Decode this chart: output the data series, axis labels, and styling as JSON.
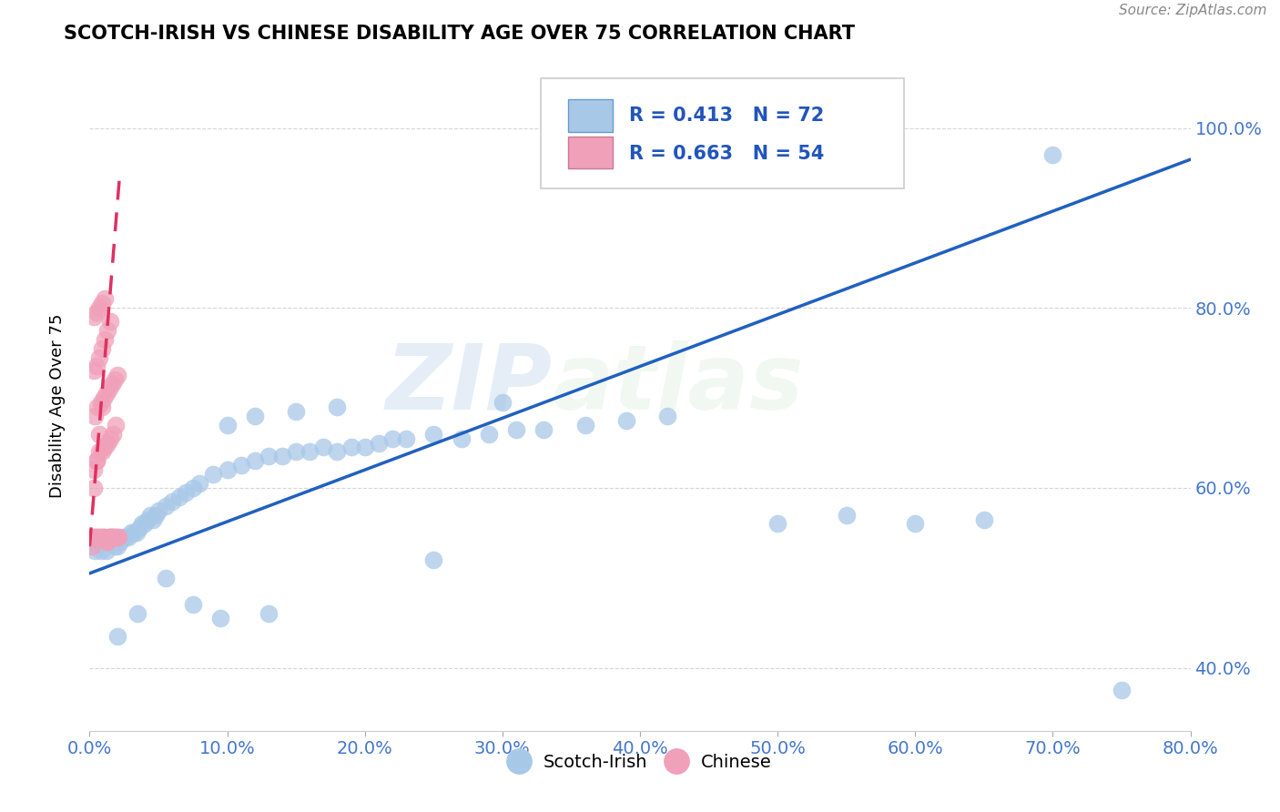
{
  "title": "SCOTCH-IRISH VS CHINESE DISABILITY AGE OVER 75 CORRELATION CHART",
  "source": "Source: ZipAtlas.com",
  "ylabel": "Disability Age Over 75",
  "legend_blue_label": "Scotch-Irish",
  "legend_pink_label": "Chinese",
  "R_blue": 0.413,
  "N_blue": 72,
  "R_pink": 0.663,
  "N_pink": 54,
  "blue_color": "#a8c8e8",
  "pink_color": "#f0a0b8",
  "trend_blue_color": "#2060c0",
  "trend_pink_color": "#e03060",
  "trend_pink_dash": true,
  "watermark_zip": "ZIP",
  "watermark_atlas": "atlas",
  "xlim": [
    0.0,
    0.8
  ],
  "ylim": [
    0.33,
    1.07
  ],
  "yticks": [
    0.4,
    0.6,
    0.8,
    1.0
  ],
  "xticks": [
    0.0,
    0.1,
    0.2,
    0.3,
    0.4,
    0.5,
    0.6,
    0.7,
    0.8
  ],
  "blue_x": [
    0.002,
    0.004,
    0.006,
    0.008,
    0.01,
    0.012,
    0.014,
    0.016,
    0.018,
    0.02,
    0.022,
    0.024,
    0.026,
    0.028,
    0.03,
    0.032,
    0.034,
    0.036,
    0.038,
    0.04,
    0.042,
    0.044,
    0.046,
    0.048,
    0.05,
    0.055,
    0.06,
    0.065,
    0.07,
    0.075,
    0.08,
    0.09,
    0.1,
    0.11,
    0.12,
    0.13,
    0.14,
    0.15,
    0.16,
    0.17,
    0.18,
    0.19,
    0.2,
    0.21,
    0.22,
    0.23,
    0.25,
    0.27,
    0.29,
    0.31,
    0.33,
    0.36,
    0.39,
    0.42,
    0.1,
    0.12,
    0.15,
    0.18,
    0.3,
    0.5,
    0.55,
    0.6,
    0.65,
    0.7,
    0.75,
    0.02,
    0.035,
    0.055,
    0.075,
    0.095,
    0.13,
    0.25
  ],
  "blue_y": [
    0.54,
    0.53,
    0.54,
    0.53,
    0.54,
    0.53,
    0.545,
    0.545,
    0.535,
    0.535,
    0.54,
    0.545,
    0.545,
    0.545,
    0.55,
    0.55,
    0.55,
    0.555,
    0.56,
    0.56,
    0.565,
    0.57,
    0.565,
    0.57,
    0.575,
    0.58,
    0.585,
    0.59,
    0.595,
    0.6,
    0.605,
    0.615,
    0.62,
    0.625,
    0.63,
    0.635,
    0.635,
    0.64,
    0.64,
    0.645,
    0.64,
    0.645,
    0.645,
    0.65,
    0.655,
    0.655,
    0.66,
    0.655,
    0.66,
    0.665,
    0.665,
    0.67,
    0.675,
    0.68,
    0.67,
    0.68,
    0.685,
    0.69,
    0.695,
    0.56,
    0.57,
    0.56,
    0.565,
    0.97,
    0.375,
    0.435,
    0.46,
    0.5,
    0.47,
    0.455,
    0.46,
    0.52
  ],
  "pink_x": [
    0.002,
    0.003,
    0.004,
    0.005,
    0.006,
    0.007,
    0.008,
    0.009,
    0.01,
    0.011,
    0.012,
    0.013,
    0.014,
    0.015,
    0.016,
    0.017,
    0.018,
    0.019,
    0.02,
    0.021,
    0.003,
    0.005,
    0.007,
    0.009,
    0.011,
    0.013,
    0.015,
    0.017,
    0.019,
    0.004,
    0.006,
    0.008,
    0.01,
    0.012,
    0.014,
    0.016,
    0.018,
    0.02,
    0.003,
    0.005,
    0.007,
    0.009,
    0.011,
    0.013,
    0.015,
    0.003,
    0.005,
    0.007,
    0.009,
    0.011,
    0.003,
    0.005,
    0.007,
    0.009
  ],
  "pink_y": [
    0.535,
    0.545,
    0.545,
    0.545,
    0.545,
    0.545,
    0.545,
    0.545,
    0.545,
    0.545,
    0.54,
    0.54,
    0.545,
    0.545,
    0.545,
    0.545,
    0.545,
    0.545,
    0.545,
    0.545,
    0.62,
    0.63,
    0.64,
    0.64,
    0.645,
    0.65,
    0.655,
    0.66,
    0.67,
    0.68,
    0.69,
    0.695,
    0.7,
    0.705,
    0.71,
    0.715,
    0.72,
    0.725,
    0.73,
    0.735,
    0.745,
    0.755,
    0.765,
    0.775,
    0.785,
    0.79,
    0.795,
    0.8,
    0.805,
    0.81,
    0.6,
    0.63,
    0.66,
    0.69
  ],
  "trend_blue_x0": 0.0,
  "trend_blue_y0": 0.505,
  "trend_blue_x1": 0.8,
  "trend_blue_y1": 0.965,
  "trend_pink_x0": 0.0,
  "trend_pink_y0": 0.535,
  "trend_pink_x1": 0.022,
  "trend_pink_y1": 0.95
}
